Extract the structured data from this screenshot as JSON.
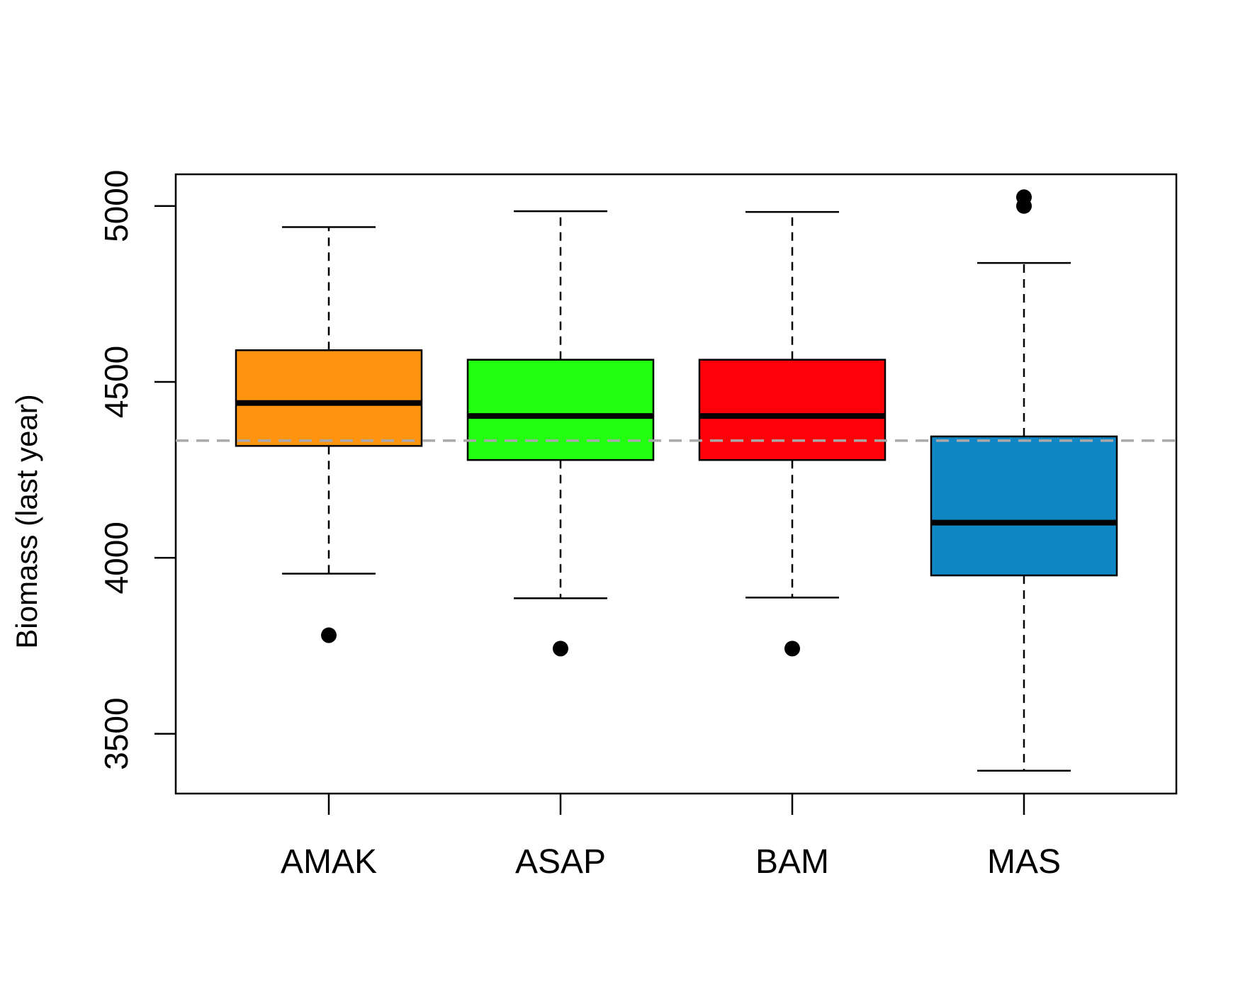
{
  "chart_data": {
    "type": "boxplot",
    "title": "",
    "xlabel": "",
    "ylabel": "Biomass (last year)",
    "ylim": [
      3330,
      5090
    ],
    "yticks": [
      3500,
      4000,
      4500,
      5000
    ],
    "grid": false,
    "reference_line": {
      "value": 4333,
      "color": "#a9a9a9",
      "style": "dashed"
    },
    "categories": [
      "AMAK",
      "ASAP",
      "BAM",
      "MAS"
    ],
    "boxes": [
      {
        "name": "AMAK",
        "color": "#ff9410",
        "whisker_low": 3955,
        "q1": 4318,
        "median": 4440,
        "q3": 4590,
        "whisker_high": 4940,
        "outliers": [
          3780
        ]
      },
      {
        "name": "ASAP",
        "color": "#22ff10",
        "whisker_low": 3885,
        "q1": 4278,
        "median": 4403,
        "q3": 4563,
        "whisker_high": 4985,
        "outliers": [
          3742
        ]
      },
      {
        "name": "BAM",
        "color": "#fe0008",
        "whisker_low": 3887,
        "q1": 4278,
        "median": 4403,
        "q3": 4563,
        "whisker_high": 4983,
        "outliers": [
          3742
        ]
      },
      {
        "name": "MAS",
        "color": "#1087c4",
        "whisker_low": 3395,
        "q1": 3950,
        "median": 4100,
        "q3": 4345,
        "whisker_high": 4838,
        "outliers": [
          5000,
          5025
        ]
      }
    ]
  }
}
